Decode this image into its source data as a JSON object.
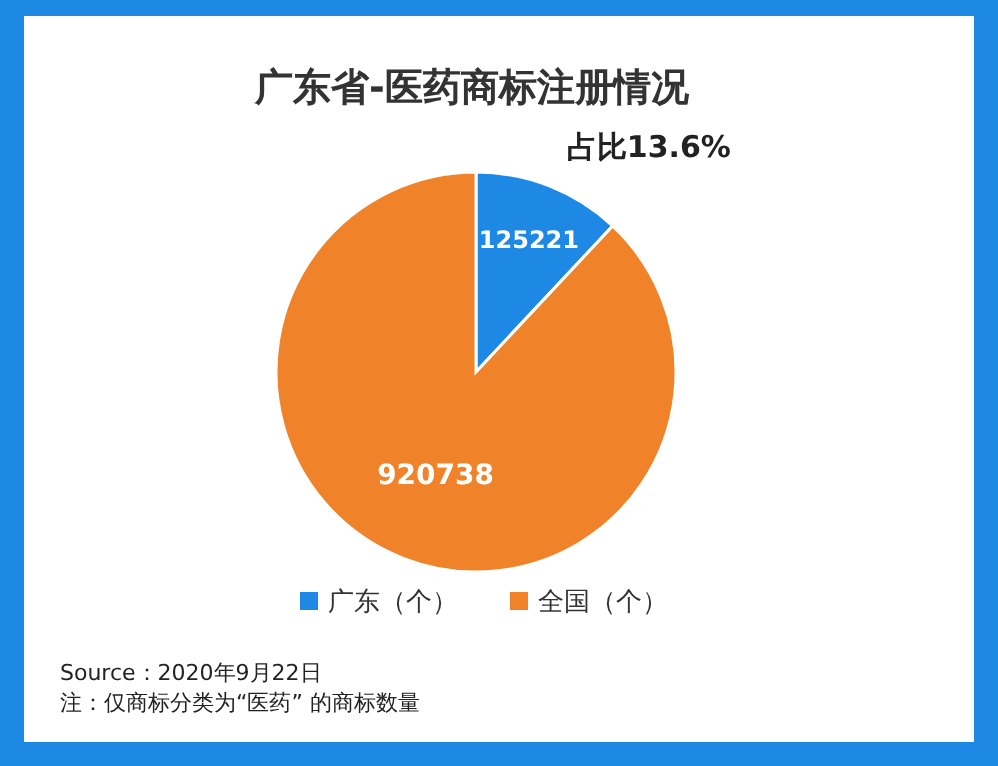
{
  "chart_data": {
    "type": "pie",
    "title": "广东省-医药商标注册情况",
    "categories": [
      "广东（个）",
      "全国（个）"
    ],
    "values": [
      125221,
      920738
    ],
    "colors": [
      "#1e88e5",
      "#f0832a"
    ],
    "data_labels": true,
    "legend": "bottom",
    "annotations": [
      "占比13.6%",
      "Source：2020年9月22日",
      "注：仅商标分类为“医药” 的商标数量"
    ]
  }
}
